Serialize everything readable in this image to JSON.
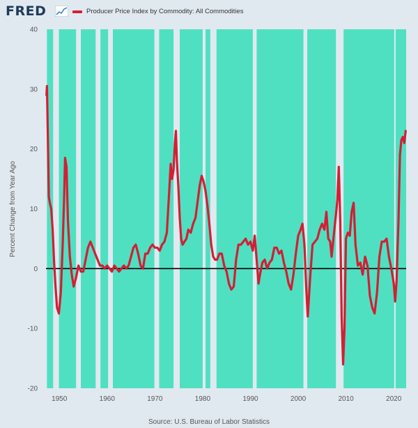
{
  "header": {
    "logo_text": "FRED",
    "logo_icon": "fred-chart-icon",
    "legend_label": "Producer Price Index by Commodity: All Commodities",
    "legend_color": "#d21f34"
  },
  "footer": {
    "source": "Source: U.S. Bureau of Labor Statistics"
  },
  "chart_data": {
    "type": "line",
    "title": "",
    "xlabel": "",
    "ylabel": "Percent Change from Year Ago",
    "xlim": [
      1947.2,
      2022.6
    ],
    "ylim": [
      -20,
      40
    ],
    "yticks": [
      -20,
      -10,
      0,
      10,
      20,
      30,
      40
    ],
    "xticks": [
      1950,
      1960,
      1970,
      1980,
      1990,
      2000,
      2010,
      2020
    ],
    "grid": false,
    "legend": "top-left",
    "colors": {
      "line": "#d21f34",
      "shade": "#4fe0c2",
      "gap": "#e1e9f0",
      "zero_line": "#000000"
    },
    "shaded_periods": [
      [
        1947.4,
        1948.7
      ],
      [
        1949.9,
        1953.5
      ],
      [
        1954.5,
        1957.6
      ],
      [
        1958.6,
        1960.2
      ],
      [
        1961.2,
        1969.9
      ],
      [
        1970.9,
        1973.9
      ],
      [
        1975.2,
        1980.0
      ],
      [
        1980.6,
        1981.6
      ],
      [
        1982.9,
        1990.5
      ],
      [
        1991.3,
        2001.1
      ],
      [
        2001.9,
        2007.9
      ],
      [
        2009.5,
        2020.1
      ],
      [
        2020.4,
        2022.6
      ]
    ],
    "series": [
      {
        "name": "Producer Price Index by Commodity: All Commodities",
        "x": [
          1947.3,
          1947.4,
          1947.6,
          1947.8,
          1948.0,
          1948.3,
          1948.6,
          1948.9,
          1949.2,
          1949.5,
          1949.9,
          1950.3,
          1950.7,
          1951.0,
          1951.2,
          1951.5,
          1951.8,
          1952.2,
          1952.6,
          1953.0,
          1953.5,
          1954.0,
          1954.5,
          1955.0,
          1955.5,
          1956.0,
          1956.5,
          1957.0,
          1957.5,
          1958.0,
          1958.5,
          1959.0,
          1959.5,
          1960.0,
          1960.5,
          1961.0,
          1961.5,
          1962.0,
          1962.5,
          1963.0,
          1963.5,
          1964.0,
          1964.5,
          1965.0,
          1965.5,
          1966.0,
          1966.5,
          1967.0,
          1967.5,
          1968.0,
          1968.5,
          1969.0,
          1969.5,
          1970.0,
          1970.5,
          1971.0,
          1971.5,
          1972.0,
          1972.5,
          1973.0,
          1973.3,
          1973.6,
          1973.9,
          1974.2,
          1974.4,
          1974.6,
          1974.9,
          1975.2,
          1975.5,
          1975.8,
          1976.2,
          1976.6,
          1977.0,
          1977.5,
          1978.0,
          1978.5,
          1979.0,
          1979.4,
          1979.8,
          1980.2,
          1980.6,
          1981.0,
          1981.4,
          1981.8,
          1982.2,
          1982.6,
          1983.0,
          1983.5,
          1984.0,
          1984.5,
          1985.0,
          1985.5,
          1986.0,
          1986.5,
          1987.0,
          1987.5,
          1988.0,
          1988.5,
          1989.0,
          1989.5,
          1990.0,
          1990.5,
          1990.9,
          1991.3,
          1991.7,
          1992.0,
          1992.5,
          1993.0,
          1993.5,
          1994.0,
          1994.5,
          1995.0,
          1995.5,
          1996.0,
          1996.5,
          1997.0,
          1997.5,
          1998.0,
          1998.5,
          1999.0,
          1999.5,
          2000.0,
          2000.5,
          2000.9,
          2001.3,
          2001.7,
          2002.0,
          2002.5,
          2003.0,
          2003.5,
          2004.0,
          2004.5,
          2005.0,
          2005.5,
          2005.9,
          2006.3,
          2006.7,
          2007.0,
          2007.5,
          2007.9,
          2008.2,
          2008.5,
          2008.8,
          2009.1,
          2009.4,
          2009.7,
          2010.0,
          2010.4,
          2010.8,
          2011.2,
          2011.6,
          2012.0,
          2012.5,
          2013.0,
          2013.5,
          2014.0,
          2014.5,
          2015.0,
          2015.5,
          2016.0,
          2016.5,
          2017.0,
          2017.5,
          2018.0,
          2018.5,
          2019.0,
          2019.5,
          2020.0,
          2020.3,
          2020.6,
          2021.0,
          2021.3,
          2021.6,
          2021.9,
          2022.2,
          2022.5
        ],
        "values": [
          29.0,
          30.5,
          22.0,
          12.0,
          11.0,
          10.0,
          6.5,
          1.0,
          -3.0,
          -6.5,
          -7.5,
          -4.0,
          4.0,
          12.0,
          18.5,
          17.0,
          8.0,
          2.0,
          -1.0,
          -3.0,
          -1.5,
          0.5,
          -0.5,
          -0.5,
          1.5,
          3.5,
          4.5,
          3.5,
          2.5,
          1.5,
          0.5,
          0.5,
          0.0,
          0.5,
          0.0,
          -0.5,
          0.5,
          0.0,
          -0.5,
          0.0,
          0.5,
          0.0,
          0.5,
          2.0,
          3.5,
          4.0,
          2.5,
          0.5,
          0.0,
          2.5,
          2.5,
          3.5,
          4.0,
          3.5,
          3.5,
          3.0,
          4.0,
          4.5,
          6.0,
          13.0,
          17.5,
          15.0,
          16.5,
          21.0,
          23.0,
          18.0,
          14.0,
          8.5,
          5.0,
          4.0,
          4.5,
          5.0,
          6.5,
          6.0,
          7.5,
          8.5,
          11.5,
          14.0,
          15.5,
          14.5,
          13.0,
          10.5,
          7.5,
          4.0,
          2.0,
          1.5,
          1.5,
          2.5,
          2.5,
          0.5,
          -0.5,
          -2.5,
          -3.5,
          -3.0,
          1.5,
          4.0,
          4.0,
          4.5,
          5.0,
          4.0,
          4.5,
          3.0,
          5.5,
          1.5,
          -2.5,
          -1.0,
          1.0,
          1.5,
          0.0,
          1.0,
          1.5,
          3.5,
          3.5,
          2.5,
          3.0,
          1.0,
          -0.5,
          -2.5,
          -3.5,
          -1.0,
          2.5,
          5.5,
          6.5,
          7.5,
          4.0,
          -3.5,
          -8.0,
          -1.5,
          4.0,
          4.5,
          5.0,
          6.5,
          7.5,
          6.5,
          9.5,
          5.0,
          4.5,
          2.0,
          6.0,
          9.0,
          11.5,
          17.0,
          8.0,
          -8.0,
          -16.0,
          -10.0,
          5.0,
          6.0,
          5.5,
          9.5,
          11.0,
          4.0,
          0.5,
          1.0,
          -1.0,
          2.0,
          0.5,
          -4.5,
          -6.5,
          -7.5,
          -4.0,
          2.0,
          4.5,
          4.5,
          5.0,
          2.0,
          0.0,
          -2.5,
          -5.5,
          -2.0,
          8.0,
          19.0,
          21.5,
          22.0,
          21.0,
          23.0
        ]
      }
    ]
  }
}
